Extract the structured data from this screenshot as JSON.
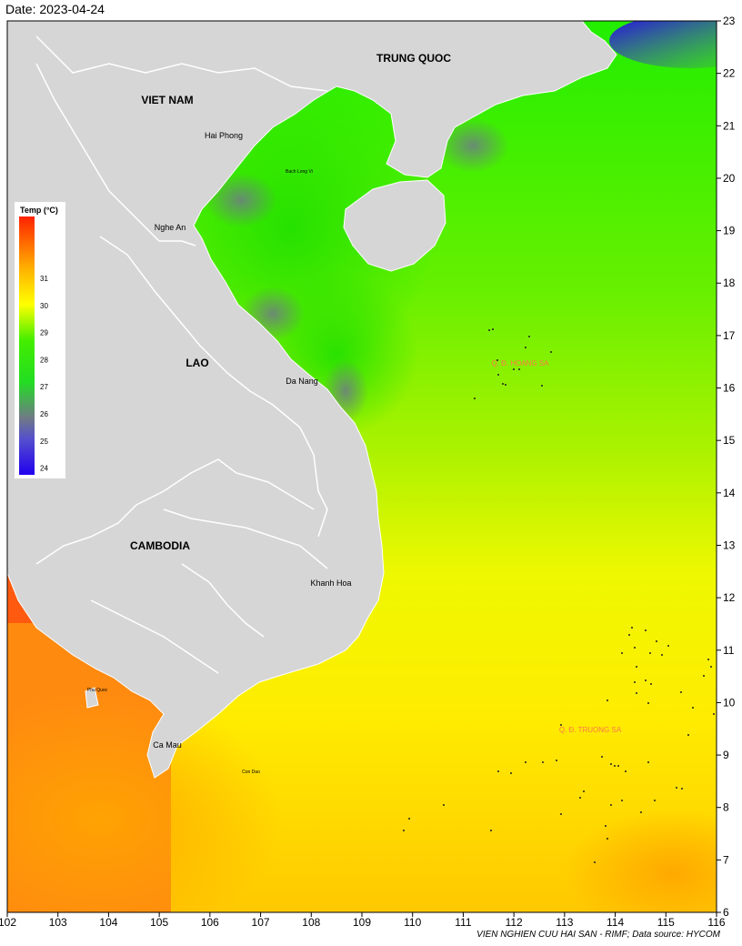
{
  "header": {
    "date_text": "Date: 2023-04-24"
  },
  "footer": {
    "credit": "VIEN NGHIEN CUU HAI SAN - RIMF; Data source: HYCOM"
  },
  "legend": {
    "title": "Temp (°C)",
    "ticks": [
      "31",
      "30",
      "29",
      "28",
      "27",
      "26",
      "25",
      "24"
    ],
    "colors": {
      "hot": "#ff2200",
      "orange": "#ff9900",
      "yellow": "#ffff00",
      "green": "#33ee00",
      "gray": "#707a86",
      "blue": "#2200ee"
    }
  },
  "axes": {
    "x_ticks": [
      "102",
      "103",
      "104",
      "105",
      "106",
      "107",
      "108",
      "109",
      "110",
      "111",
      "112",
      "113",
      "114",
      "115",
      "116"
    ],
    "y_ticks": [
      "6",
      "7",
      "8",
      "9",
      "10",
      "11",
      "12",
      "13",
      "14",
      "15",
      "16",
      "17",
      "18",
      "19",
      "20",
      "21",
      "22",
      "23"
    ]
  },
  "labels": {
    "trung_quoc": "TRUNG QUOC",
    "viet_nam": "VIET NAM",
    "lao": "LAO",
    "cambodia": "CAMBODIA",
    "hai_phong": "Hai Phong",
    "bach_long_vi": "Bach Long Vi",
    "nghe_an": "Nghe An",
    "da_nang": "Da Nang",
    "khanh_hoa": "Khanh Hoa",
    "phu_quoc": "Phu Quoc",
    "ca_mau": "Ca Mau",
    "con_dao": "Con Dao",
    "hoang_sa": "Q. Đ. HOANG SA",
    "truong_sa": "Q. Đ. TRUONG SA"
  }
}
